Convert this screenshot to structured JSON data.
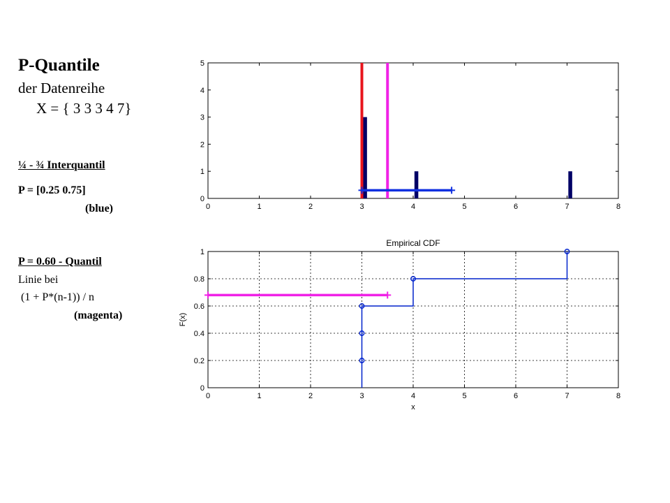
{
  "slide": {
    "title": "P-Quantile",
    "subtitle_line1": "der Datenreihe",
    "subtitle_line2": "X = { 3 3 3 4 7}",
    "interquantil": {
      "heading": "¼ - ¾  Interquantil",
      "p_text": "P = [0.25 0.75]",
      "color_text": "(blue)"
    },
    "quantil": {
      "heading": "P = 0.60 - Quantil",
      "line1": "Linie bei",
      "line2": "(1 + P*(n-1)) / n",
      "color_text": "(magenta)"
    }
  },
  "chart_data": [
    {
      "type": "bar",
      "x": [
        3,
        4,
        7
      ],
      "values": [
        3,
        1,
        1
      ],
      "xlim": [
        0,
        8
      ],
      "ylim": [
        0,
        5
      ],
      "xticks": [
        "0",
        "1",
        "2",
        "3",
        "4",
        "5",
        "6",
        "7",
        "8"
      ],
      "yticks": [
        "0",
        "1",
        "2",
        "3",
        "4",
        "5"
      ],
      "grid": false,
      "bar_color": "#000066",
      "vertical_lines": [
        {
          "x": 3.0,
          "color": "#e8141c"
        },
        {
          "x": 3.5,
          "color": "#f022e6"
        }
      ],
      "interval": {
        "x": [
          3.0,
          4.75
        ],
        "y": 0.3,
        "color": "#1030e0"
      }
    },
    {
      "type": "line",
      "title": "Empirical CDF",
      "xlabel": "x",
      "ylabel": "F(x)",
      "xlim": [
        0,
        8
      ],
      "ylim": [
        0,
        1
      ],
      "xticks": [
        "0",
        "1",
        "2",
        "3",
        "4",
        "5",
        "6",
        "7",
        "8"
      ],
      "yticks": [
        "0",
        "0.2",
        "0.4",
        "0.6",
        "0.8",
        "1"
      ],
      "grid": true,
      "step_x": [
        3,
        3,
        4,
        4,
        7,
        7
      ],
      "step_y": [
        0,
        0.6,
        0.6,
        0.8,
        0.8,
        1
      ],
      "points": [
        {
          "x": 3,
          "y": 0.2
        },
        {
          "x": 3,
          "y": 0.4
        },
        {
          "x": 3,
          "y": 0.6
        },
        {
          "x": 4,
          "y": 0.8
        },
        {
          "x": 7,
          "y": 1
        }
      ],
      "line_color": "#0022cc",
      "interval": {
        "x": [
          0.0,
          3.5
        ],
        "y": 0.68,
        "color": "#f022e6"
      }
    }
  ]
}
